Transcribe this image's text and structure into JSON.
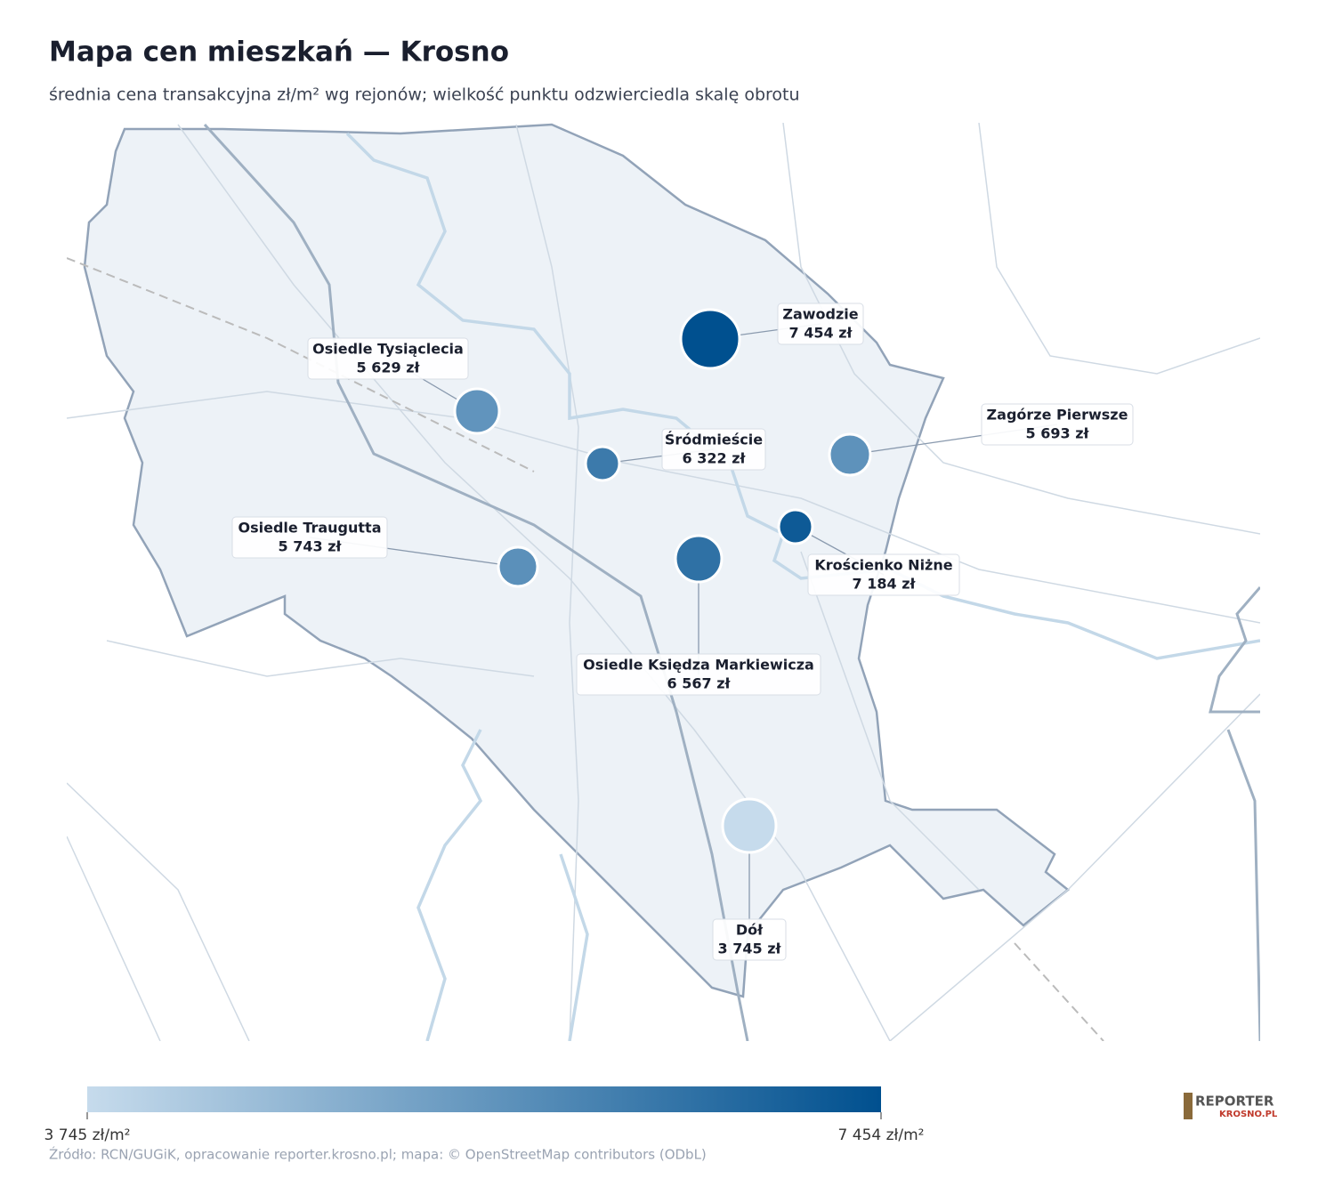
{
  "title": "Mapa cen mieszkań — Krosno",
  "subtitle": "średnia cena transakcyjna zł/m² wg rejonów; wielkość punktu odzwierciedla skalę obrotu",
  "chart_data": {
    "type": "bubble-map",
    "districts": [
      {
        "name": "Zawodzie",
        "value": 7454,
        "value_label": "7 454 zł"
      },
      {
        "name": "Osiedle Tysiąclecia",
        "value": 5629,
        "value_label": "5 629 zł"
      },
      {
        "name": "Śródmieście",
        "value": 6322,
        "value_label": "6 322 zł"
      },
      {
        "name": "Zagórze Pierwsze",
        "value": 5693,
        "value_label": "5 693 zł"
      },
      {
        "name": "Krościenko Niżne",
        "value": 7184,
        "value_label": "7 184 zł"
      },
      {
        "name": "Osiedle Traugutta",
        "value": 5743,
        "value_label": "5 743 zł"
      },
      {
        "name": "Osiedle Księdza Markiewicza",
        "value": 6567,
        "value_label": "6 567 zł"
      },
      {
        "name": "Dół",
        "value": 3745,
        "value_label": "3 745 zł"
      }
    ],
    "colorscale": [
      "#c6dbec",
      "#00508f"
    ],
    "clim": [
      3745,
      7454
    ],
    "cticks": [
      {
        "value": 3745,
        "label": "3 745 zł/m²"
      },
      {
        "value": 7454,
        "label": "7 454 zł/m²"
      }
    ]
  },
  "source": "Źródło: RCN/GUGiK, opracowanie reporter.krosno.pl; mapa: © OpenStreetMap contributors (ODbL)",
  "logo": {
    "top": "REPORTER",
    "bottom": "KROSNO.PL"
  }
}
